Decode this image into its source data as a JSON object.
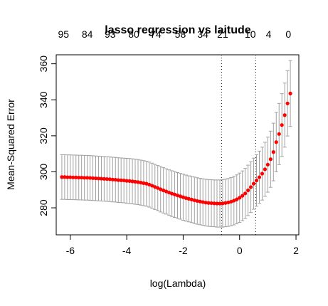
{
  "chart_data": {
    "type": "scatter",
    "title": "lasso regression vs laitude",
    "xlabel": "log(Lambda)",
    "ylabel": "Mean-Squared Error",
    "xlim": [
      -6.5,
      2.1
    ],
    "ylim": [
      265,
      365
    ],
    "x_ticks": [
      "-6",
      "-4",
      "-2",
      "0",
      "2"
    ],
    "y_ticks": [
      "280",
      "300",
      "320",
      "340",
      "360"
    ],
    "top_axis": {
      "x": [
        -6.24,
        -5.4,
        -4.59,
        -3.75,
        -2.97,
        -2.1,
        -1.3,
        -0.6,
        0.38,
        1.03,
        1.73
      ],
      "labels": [
        "95",
        "84",
        "93",
        "80",
        "74",
        "58",
        "34",
        "21",
        "10",
        "4",
        "0"
      ]
    },
    "vlines": [
      -0.64,
      0.57
    ],
    "point_color": "#ff0000",
    "errorbar_color": "#a0a0a0",
    "series": [
      {
        "x": [
          -6.3,
          -6.2,
          -6.1,
          -6.0,
          -5.9,
          -5.8,
          -5.7,
          -5.6,
          -5.5,
          -5.4,
          -5.3,
          -5.2,
          -5.1,
          -5.0,
          -4.9,
          -4.8,
          -4.7,
          -4.6,
          -4.5,
          -4.4,
          -4.3,
          -4.2,
          -4.1,
          -4.0,
          -3.9,
          -3.8,
          -3.7,
          -3.6,
          -3.5,
          -3.4,
          -3.3,
          -3.2,
          -3.1,
          -3.0,
          -2.9,
          -2.8,
          -2.7,
          -2.6,
          -2.5,
          -2.4,
          -2.3,
          -2.2,
          -2.1,
          -2.0,
          -1.9,
          -1.8,
          -1.7,
          -1.6,
          -1.5,
          -1.4,
          -1.3,
          -1.2,
          -1.1,
          -1.0,
          -0.9,
          -0.8,
          -0.7,
          -0.6,
          -0.5,
          -0.4,
          -0.3,
          -0.2,
          -0.1,
          0.0,
          0.1,
          0.2,
          0.3,
          0.4,
          0.5,
          0.6,
          0.7,
          0.8,
          0.9,
          1.0,
          1.1,
          1.2,
          1.3,
          1.4,
          1.5,
          1.6,
          1.7,
          1.8
        ],
        "y": [
          297.1,
          297.1,
          297.0,
          297.0,
          296.9,
          296.9,
          296.8,
          296.8,
          296.7,
          296.7,
          296.6,
          296.5,
          296.4,
          296.3,
          296.2,
          296.1,
          296.0,
          295.9,
          295.7,
          295.6,
          295.4,
          295.3,
          295.2,
          295.0,
          294.9,
          294.7,
          294.5,
          294.3,
          294.0,
          293.7,
          293.4,
          292.9,
          292.3,
          291.6,
          291.0,
          290.3,
          289.7,
          289.1,
          288.5,
          287.9,
          287.4,
          286.9,
          286.4,
          285.9,
          285.4,
          285.0,
          284.6,
          284.2,
          283.8,
          283.5,
          283.2,
          282.9,
          282.7,
          282.6,
          282.5,
          282.4,
          282.4,
          282.5,
          282.7,
          283.0,
          283.4,
          284.0,
          284.7,
          285.6,
          286.7,
          288.0,
          289.7,
          291.5,
          293.4,
          295.2,
          297.0,
          299.0,
          301.4,
          304.0,
          307.0,
          311.0,
          316.5,
          321.0,
          326.0,
          331.5,
          338.0,
          343.5
        ],
        "err": [
          12.4,
          12.4,
          12.4,
          12.4,
          12.4,
          12.4,
          12.4,
          12.4,
          12.4,
          12.4,
          12.4,
          12.4,
          12.4,
          12.4,
          12.4,
          12.4,
          12.4,
          12.4,
          12.4,
          12.4,
          12.4,
          12.4,
          12.4,
          12.5,
          12.5,
          12.5,
          12.5,
          12.5,
          12.5,
          12.5,
          12.5,
          12.5,
          12.5,
          12.5,
          12.5,
          12.6,
          12.6,
          12.6,
          12.6,
          12.7,
          12.7,
          12.7,
          12.7,
          12.8,
          12.8,
          12.8,
          12.8,
          12.9,
          12.9,
          12.9,
          12.9,
          13.0,
          13.0,
          13.0,
          13.0,
          13.1,
          13.1,
          13.2,
          13.2,
          13.3,
          13.4,
          13.5,
          13.6,
          13.7,
          13.8,
          13.9,
          14.0,
          14.1,
          14.2,
          14.3,
          14.5,
          14.7,
          15.0,
          15.3,
          15.6,
          16.0,
          16.5,
          17.0,
          17.4,
          17.8,
          18.1,
          18.3
        ]
      }
    ]
  }
}
